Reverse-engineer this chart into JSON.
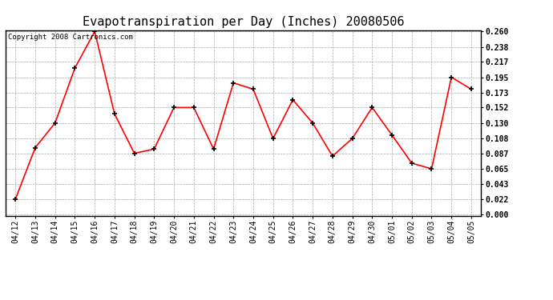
{
  "title": "Evapotranspiration per Day (Inches) 20080506",
  "copyright": "Copyright 2008 Cartronics.com",
  "x_labels": [
    "04/12",
    "04/13",
    "04/14",
    "04/15",
    "04/16",
    "04/17",
    "04/18",
    "04/19",
    "04/20",
    "04/21",
    "04/22",
    "04/23",
    "04/24",
    "04/25",
    "04/26",
    "04/27",
    "04/28",
    "04/29",
    "04/30",
    "05/01",
    "05/02",
    "05/03",
    "05/04",
    "05/05"
  ],
  "y_values": [
    0.022,
    0.095,
    0.13,
    0.208,
    0.26,
    0.143,
    0.087,
    0.093,
    0.152,
    0.152,
    0.093,
    0.187,
    0.178,
    0.108,
    0.163,
    0.13,
    0.083,
    0.108,
    0.152,
    0.113,
    0.073,
    0.065,
    0.195,
    0.178
  ],
  "line_color": "#ff0000",
  "marker_color": "#000000",
  "background_color": "#ffffff",
  "grid_color": "#aaaaaa",
  "y_ticks": [
    0.0,
    0.022,
    0.043,
    0.065,
    0.087,
    0.108,
    0.13,
    0.152,
    0.173,
    0.195,
    0.217,
    0.238,
    0.26
  ],
  "ylim": [
    0.0,
    0.26
  ],
  "title_fontsize": 11,
  "copyright_fontsize": 6.5,
  "tick_fontsize": 7
}
